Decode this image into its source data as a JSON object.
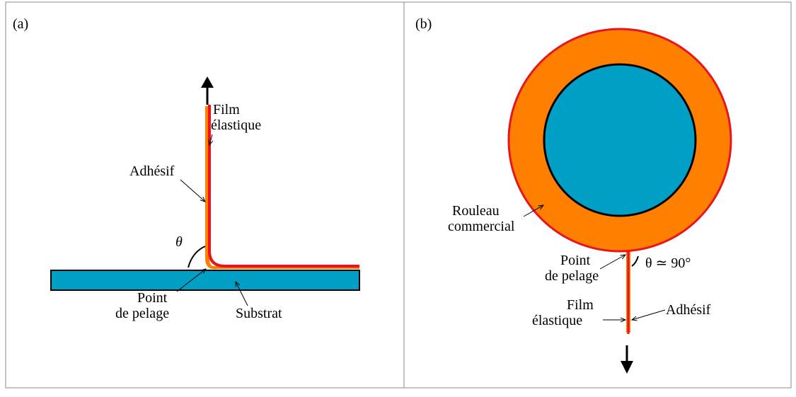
{
  "panel_a": {
    "label": "(a)",
    "film_line1": "Film",
    "film_line2": "élastique",
    "adhesive": "Adhésif",
    "angle": "θ",
    "peel_line1": "Point",
    "peel_line2": "de pelage",
    "substrate": "Substrat"
  },
  "panel_b": {
    "label": "(b)",
    "roll_line1": "Rouleau",
    "roll_line2": "commercial",
    "peel_line1": "Point",
    "peel_line2": "de pelage",
    "angle": "θ ≃ 90°",
    "film_line1": "Film",
    "film_line2": "élastique",
    "adhesive": "Adhésif"
  }
}
